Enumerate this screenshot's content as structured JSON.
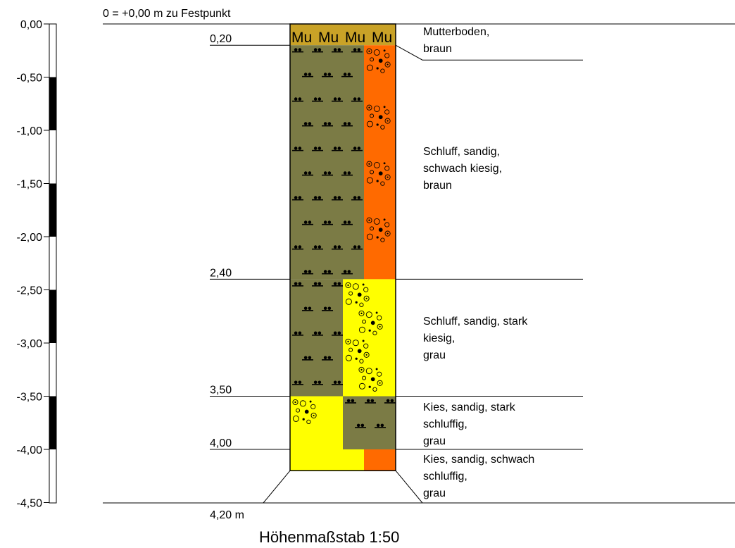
{
  "header": {
    "reference": "0 = +0,00 m zu Festpunkt"
  },
  "scale_bar": {
    "ticks": [
      "0,00",
      "-0,50",
      "-1,00",
      "-1,50",
      "-2,00",
      "-2,50",
      "-3,00",
      "-3,50",
      "-4,00",
      "-4,50"
    ]
  },
  "column": {
    "topsoil_code": "Mu",
    "boundaries": [
      "0,20",
      "2,40",
      "3,50",
      "4,00"
    ],
    "final_depth": "4,20 m",
    "colors": {
      "topsoil": "#c9a227",
      "silt": "#7b7b45",
      "orange": "#ff6a00",
      "yellow": "#ffff00",
      "line": "#000000"
    }
  },
  "layers": [
    {
      "lines": [
        "Mutterboden,",
        "braun"
      ]
    },
    {
      "lines": [
        "Schluff, sandig,",
        "schwach kiesig,",
        "braun"
      ]
    },
    {
      "lines": [
        "Schluff, sandig, stark",
        "kiesig,",
        "grau"
      ]
    },
    {
      "lines": [
        "Kies, sandig, stark",
        "schluffig,",
        "grau"
      ]
    },
    {
      "lines": [
        "Kies, sandig, schwach",
        "schluffig,",
        "grau"
      ]
    }
  ],
  "footer": {
    "scale_label": "Höhenmaßstab 1:50"
  }
}
